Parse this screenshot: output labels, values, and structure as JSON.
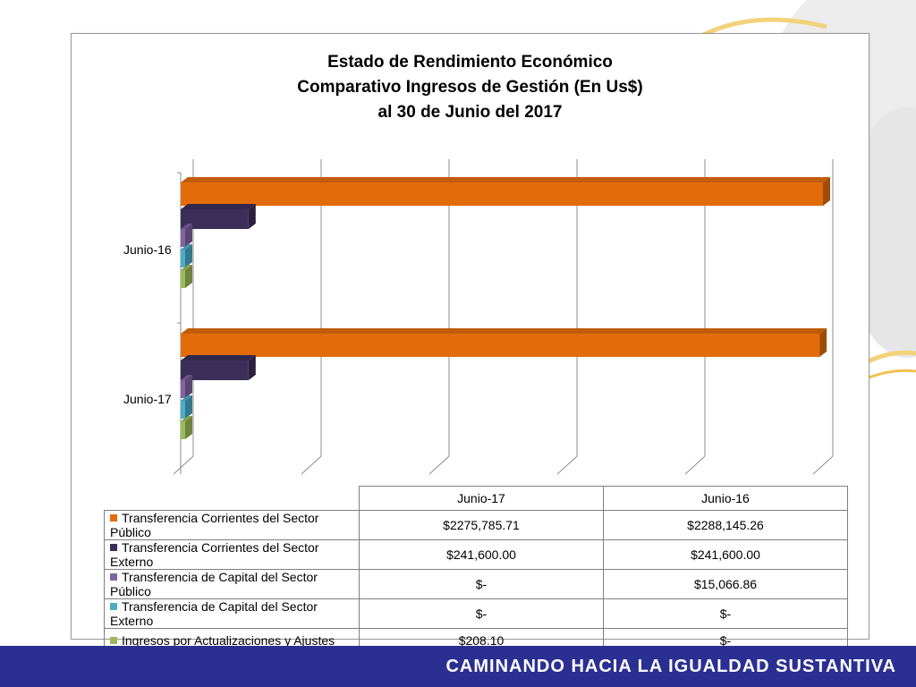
{
  "footer": {
    "text": "CAMINANDO HACIA LA IGUALDAD SUSTANTIVA",
    "bg_color": "#2b2f91"
  },
  "chart_data": {
    "type": "bar",
    "orientation": "horizontal",
    "title_lines": [
      "Estado de Rendimiento Económico",
      "Comparativo Ingresos de Gestión (En Us$)",
      "al 30 de Junio del 2017"
    ],
    "categories": [
      "Junio-16",
      "Junio-17"
    ],
    "table_columns": [
      "Junio-17",
      "Junio-16"
    ],
    "grid": true,
    "legend": "data-table-below",
    "series": [
      {
        "name": "Transferencia Corrientes del Sector Público",
        "color": "#e36c0a",
        "values": [
          2288145.26,
          2275785.71
        ],
        "table_values": [
          "$2275,785.71",
          "$2288,145.26"
        ]
      },
      {
        "name": "Transferencia Corrientes del Sector Externo",
        "color": "#3b2f5a",
        "values": [
          241600.0,
          241600.0
        ],
        "table_values": [
          "$241,600.00",
          "$241,600.00"
        ]
      },
      {
        "name": "Transferencia de Capital del Sector Público",
        "color": "#8064a2",
        "values": [
          15066.86,
          0
        ],
        "table_values": [
          "$-",
          "$15,066.86"
        ]
      },
      {
        "name": "Transferencia de Capital del Sector Externo",
        "color": "#4bacc6",
        "values": [
          0,
          0
        ],
        "table_values": [
          "$-",
          "$-"
        ]
      },
      {
        "name": "Ingresos por Actualizaciones y Ajustes",
        "color": "#9bbb59",
        "values": [
          0,
          208.1
        ],
        "table_values": [
          "$208.10",
          "$-"
        ]
      }
    ]
  }
}
